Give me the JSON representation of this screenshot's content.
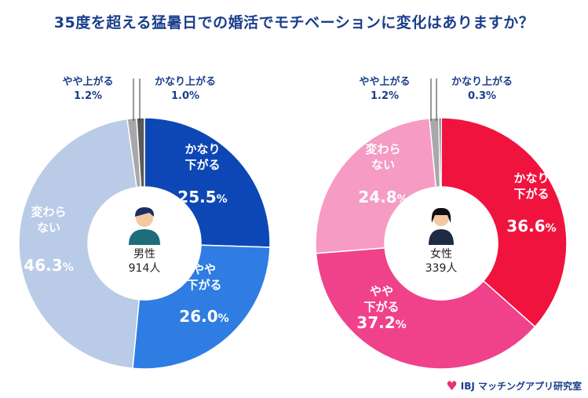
{
  "title": "35度を超える猛暑日での婚活でモチベーションに変化はありますか？",
  "brand": "IBJ マッチングアプリ研究室",
  "colors": {
    "male": {
      "かなり下がる": "#0d47b5",
      "やや下がる": "#2f7de3",
      "変わらない": "#b9cbe6",
      "やや上がる": "#a8a8a8",
      "かなり上がる": "#5a5a5a"
    },
    "female": {
      "かなり下がる": "#f0133e",
      "やや下がる": "#f0418b",
      "変わらない": "#f59bc4",
      "やや上がる": "#a8a8a8",
      "かなり上がる": "#5a5a5a"
    }
  },
  "chart_data": [
    {
      "type": "pie",
      "center_label": [
        "男性",
        "914人"
      ],
      "icon": "male-person-icon",
      "slices": [
        {
          "label": "かなり下がる",
          "value": 25.5
        },
        {
          "label": "やや下がる",
          "value": 26.0
        },
        {
          "label": "変わらない",
          "value": 46.3
        },
        {
          "label": "やや上がる",
          "value": 1.2
        },
        {
          "label": "かなり上がる",
          "value": 1.0
        }
      ]
    },
    {
      "type": "pie",
      "center_label": [
        "女性",
        "339人"
      ],
      "icon": "female-person-icon",
      "slices": [
        {
          "label": "かなり下がる",
          "value": 36.6
        },
        {
          "label": "やや下がる",
          "value": 37.2
        },
        {
          "label": "変わらない",
          "value": 24.8
        },
        {
          "label": "やや上がる",
          "value": 1.2
        },
        {
          "label": "かなり上がる",
          "value": 0.3
        }
      ]
    }
  ]
}
